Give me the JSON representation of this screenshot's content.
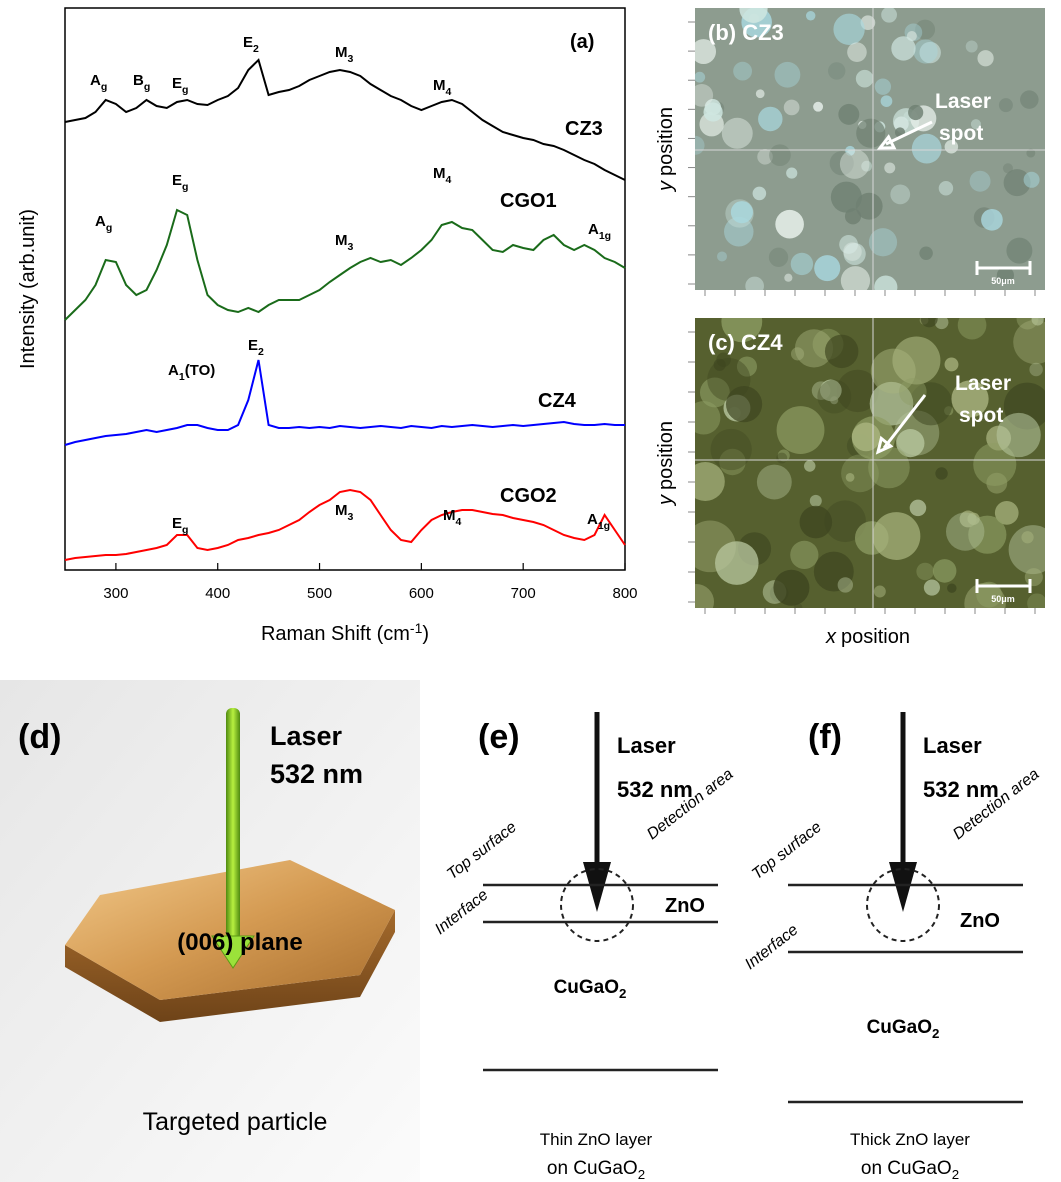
{
  "chart_data": {
    "type": "line",
    "panel_label": "(a)",
    "xlabel": {
      "text": "Raman Shift (cm",
      "sup": "-1",
      "end": ")"
    },
    "ylabel": "Intensity (arb.unit)",
    "x": [
      250,
      260,
      270,
      280,
      290,
      300,
      310,
      320,
      330,
      340,
      350,
      360,
      370,
      380,
      390,
      400,
      410,
      420,
      430,
      440,
      450,
      460,
      470,
      480,
      490,
      500,
      510,
      520,
      530,
      540,
      550,
      560,
      570,
      580,
      590,
      600,
      610,
      620,
      630,
      640,
      650,
      660,
      670,
      680,
      690,
      700,
      710,
      720,
      730,
      740,
      750,
      760,
      770,
      780,
      790,
      800
    ],
    "xlim": [
      250,
      800
    ],
    "xticks": [
      300,
      400,
      500,
      600,
      700,
      800
    ],
    "ylim": [
      0,
      562
    ],
    "series": [
      {
        "name": "CZ3",
        "color": "#000000",
        "values": [
          448,
          450,
          452,
          458,
          470,
          466,
          458,
          462,
          470,
          464,
          462,
          468,
          470,
          466,
          465,
          470,
          474,
          482,
          500,
          510,
          475,
          478,
          480,
          484,
          490,
          494,
          498,
          500,
          498,
          494,
          486,
          480,
          474,
          470,
          464,
          460,
          464,
          468,
          470,
          466,
          458,
          450,
          444,
          438,
          435,
          432,
          430,
          426,
          424,
          420,
          415,
          410,
          406,
          400,
          395,
          390
        ],
        "peaks": [
          {
            "text": "A",
            "sub": "g"
          },
          {
            "text": "B",
            "sub": "g"
          },
          {
            "text": "E",
            "sub": "g"
          },
          {
            "text": "E",
            "sub": "2"
          },
          {
            "text": "M",
            "sub": "3"
          },
          {
            "text": "M",
            "sub": "4"
          }
        ]
      },
      {
        "name": "CGO1",
        "color": "#1a6b1a",
        "values": [
          250,
          260,
          270,
          285,
          310,
          308,
          285,
          275,
          280,
          300,
          325,
          360,
          355,
          310,
          275,
          265,
          260,
          258,
          262,
          258,
          265,
          270,
          270,
          270,
          275,
          280,
          288,
          295,
          302,
          308,
          312,
          308,
          310,
          305,
          312,
          320,
          330,
          345,
          348,
          342,
          340,
          330,
          320,
          318,
          325,
          322,
          320,
          330,
          335,
          325,
          320,
          325,
          320,
          312,
          308,
          302
        ],
        "peaks": [
          {
            "text": "A",
            "sub": "g"
          },
          {
            "text": "E",
            "sub": "g"
          },
          {
            "text": "M",
            "sub": "3"
          },
          {
            "text": "M",
            "sub": "4"
          },
          {
            "text": "A",
            "sub": "1g"
          }
        ]
      },
      {
        "name": "CZ4",
        "color": "#0000ff",
        "values": [
          125,
          128,
          130,
          132,
          134,
          135,
          136,
          138,
          140,
          138,
          140,
          142,
          145,
          145,
          142,
          140,
          140,
          145,
          170,
          210,
          145,
          142,
          142,
          143,
          142,
          143,
          142,
          144,
          143,
          142,
          143,
          144,
          143,
          142,
          144,
          143,
          142,
          144,
          143,
          144,
          145,
          144,
          143,
          144,
          145,
          144,
          145,
          146,
          147,
          148,
          146,
          145,
          145,
          146,
          145,
          145
        ],
        "peaks": [
          {
            "text": "A",
            "sub": "1",
            "end": "(TO)"
          },
          {
            "text": "E",
            "sub": "2"
          }
        ]
      },
      {
        "name": "CGO2",
        "color": "#ff0000",
        "values": [
          10,
          12,
          13,
          14,
          15,
          15,
          16,
          18,
          20,
          22,
          25,
          35,
          35,
          22,
          20,
          22,
          25,
          30,
          32,
          35,
          37,
          40,
          45,
          50,
          58,
          65,
          70,
          78,
          80,
          78,
          70,
          55,
          40,
          30,
          28,
          40,
          50,
          55,
          58,
          60,
          60,
          58,
          56,
          55,
          52,
          50,
          48,
          45,
          40,
          35,
          32,
          30,
          35,
          55,
          40,
          25
        ],
        "peaks": [
          {
            "text": "E",
            "sub": "g"
          },
          {
            "text": "M",
            "sub": "3"
          },
          {
            "text": "M",
            "sub": "4"
          },
          {
            "text": "A",
            "sub": "1g"
          }
        ]
      }
    ]
  },
  "micrographs": [
    {
      "label": "(b) CZ3",
      "pointer": [
        "Laser",
        "spot"
      ],
      "scale": "50μm"
    },
    {
      "label": "(c) CZ4",
      "pointer": [
        "Laser",
        "spot"
      ],
      "scale": "50μm"
    }
  ],
  "micrograph_axes": {
    "y": {
      "var": "y",
      "text": "position"
    },
    "x": {
      "var": "x",
      "text": "position"
    }
  },
  "diagrams": [
    {
      "label": "(d)",
      "laser": [
        "Laser",
        "532 nm"
      ],
      "plane": "(006) plane",
      "caption": "Targeted particle"
    },
    {
      "label": "(e)",
      "laser": [
        "Laser",
        "532 nm"
      ],
      "top": "Top surface",
      "interface": "Interface",
      "detection": "Detection area",
      "layer": "ZnO",
      "substrate": {
        "text": "CuGaO",
        "sub": "2"
      },
      "caption": {
        "line1": "Thin ZnO layer",
        "line2": {
          "text": "on CuGaO",
          "sub": "2"
        }
      }
    },
    {
      "label": "(f)",
      "laser": [
        "Laser",
        "532 nm"
      ],
      "top": "Top surface",
      "interface": "Interface",
      "detection": "Detection area",
      "layer": "ZnO",
      "substrate": {
        "text": "CuGaO",
        "sub": "2"
      },
      "caption": {
        "line1": "Thick ZnO layer",
        "line2": {
          "text": "on CuGaO",
          "sub": "2"
        }
      }
    }
  ]
}
